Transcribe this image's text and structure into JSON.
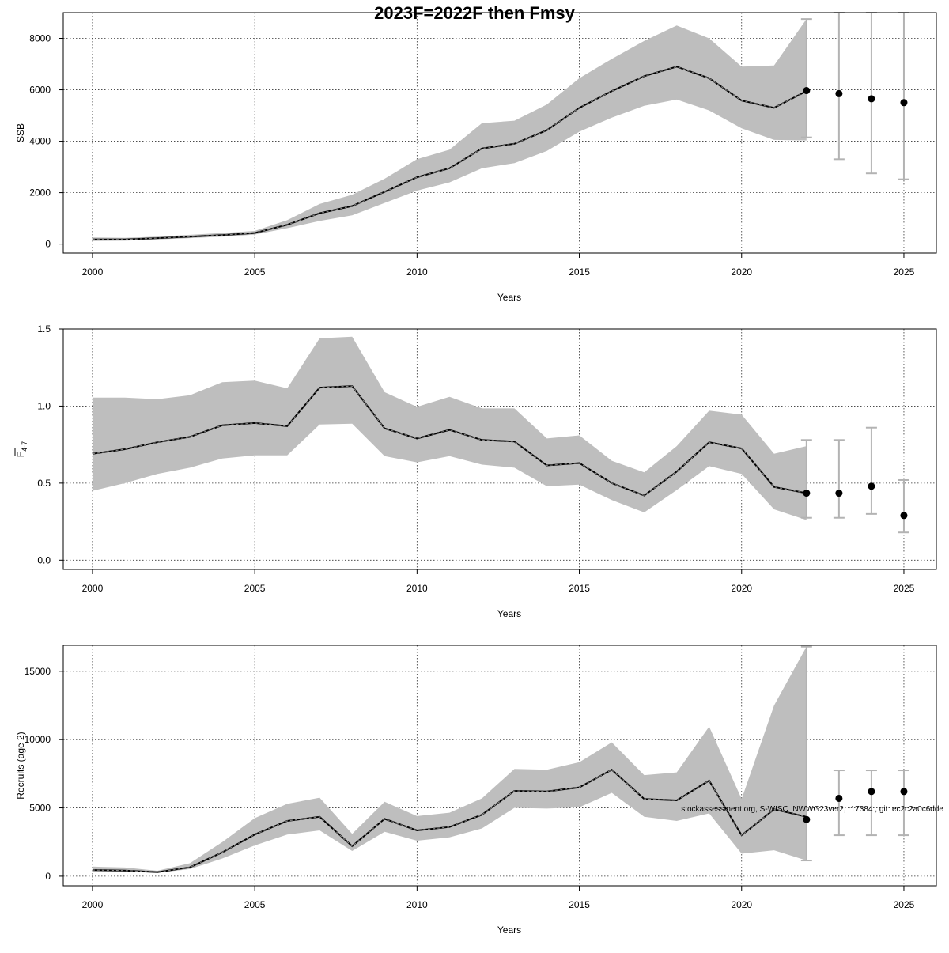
{
  "title": "2023F=2022F then Fmsy",
  "footer_note": "stockassessment.org, S-WISC_NWWG23ver2, r17384 , git: ec2c2a0c6dde",
  "chart_data": [
    {
      "id": "ssb",
      "type": "line",
      "ylabel": "SSB",
      "ylabel_sub": "",
      "xlabel": "Years",
      "xlim": [
        1999.1,
        2026
      ],
      "ylim": [
        -350,
        9000
      ],
      "xticks": [
        2000,
        2005,
        2010,
        2015,
        2020,
        2025
      ],
      "yticks": [
        0,
        2000,
        4000,
        6000,
        8000
      ],
      "ytick_labels": [
        "0",
        "2000",
        "4000",
        "6000",
        "8000"
      ],
      "grid": true,
      "years": [
        2000,
        2001,
        2002,
        2003,
        2004,
        2005,
        2006,
        2007,
        2008,
        2009,
        2010,
        2011,
        2012,
        2013,
        2014,
        2015,
        2016,
        2017,
        2018,
        2019,
        2020,
        2021,
        2022
      ],
      "estimate": [
        180,
        180,
        230,
        290,
        350,
        430,
        750,
        1200,
        1480,
        2030,
        2600,
        2950,
        3720,
        3900,
        4430,
        5300,
        5950,
        6530,
        6900,
        6450,
        5580,
        5300,
        5950
      ],
      "lower": [
        120,
        130,
        180,
        230,
        290,
        370,
        620,
        900,
        1120,
        1600,
        2080,
        2400,
        2950,
        3150,
        3620,
        4370,
        4920,
        5380,
        5620,
        5200,
        4500,
        4050,
        4030
      ],
      "upper": [
        260,
        240,
        290,
        360,
        430,
        510,
        930,
        1560,
        1920,
        2540,
        3300,
        3670,
        4700,
        4800,
        5430,
        6450,
        7200,
        7900,
        8500,
        8000,
        6900,
        6950,
        8750
      ],
      "forecast": [
        {
          "year": 2022,
          "median": 5970,
          "low": 4150,
          "high": 8750
        },
        {
          "year": 2023,
          "median": 5850,
          "low": 3300,
          "high": 9000
        },
        {
          "year": 2024,
          "median": 5650,
          "low": 2750,
          "high": 9000
        },
        {
          "year": 2025,
          "median": 5500,
          "low": 2520,
          "high": 9000
        }
      ]
    },
    {
      "id": "f",
      "type": "line",
      "ylabel": "F",
      "ylabel_sub": "4-7",
      "xlabel": "Years",
      "xlim": [
        1999.1,
        2026
      ],
      "ylim": [
        -0.06,
        1.5
      ],
      "xticks": [
        2000,
        2005,
        2010,
        2015,
        2020,
        2025
      ],
      "yticks": [
        0.0,
        0.5,
        1.0,
        1.5
      ],
      "ytick_labels": [
        "0.0",
        "0.5",
        "1.0",
        "1.5"
      ],
      "grid": true,
      "years": [
        2000,
        2001,
        2002,
        2003,
        2004,
        2005,
        2006,
        2007,
        2008,
        2009,
        2010,
        2011,
        2012,
        2013,
        2014,
        2015,
        2016,
        2017,
        2018,
        2019,
        2020,
        2021,
        2022
      ],
      "estimate": [
        0.69,
        0.72,
        0.765,
        0.8,
        0.875,
        0.89,
        0.87,
        1.12,
        1.13,
        0.855,
        0.79,
        0.845,
        0.78,
        0.77,
        0.615,
        0.63,
        0.5,
        0.42,
        0.575,
        0.765,
        0.725,
        0.475,
        0.435
      ],
      "lower": [
        0.45,
        0.5,
        0.56,
        0.6,
        0.66,
        0.68,
        0.68,
        0.88,
        0.885,
        0.675,
        0.635,
        0.675,
        0.62,
        0.6,
        0.48,
        0.49,
        0.39,
        0.31,
        0.455,
        0.61,
        0.56,
        0.33,
        0.26
      ],
      "upper": [
        1.055,
        1.055,
        1.045,
        1.07,
        1.155,
        1.165,
        1.115,
        1.44,
        1.45,
        1.09,
        0.995,
        1.06,
        0.985,
        0.985,
        0.79,
        0.81,
        0.645,
        0.57,
        0.74,
        0.97,
        0.945,
        0.69,
        0.74
      ],
      "forecast": [
        {
          "year": 2022,
          "median": 0.435,
          "low": 0.275,
          "high": 0.78
        },
        {
          "year": 2023,
          "median": 0.435,
          "low": 0.275,
          "high": 0.78
        },
        {
          "year": 2024,
          "median": 0.48,
          "low": 0.3,
          "high": 0.86
        },
        {
          "year": 2025,
          "median": 0.29,
          "low": 0.18,
          "high": 0.52
        }
      ]
    },
    {
      "id": "rec",
      "type": "line",
      "ylabel": "Recruits (age 2)",
      "ylabel_sub": "",
      "xlabel": "Years",
      "xlim": [
        1999.1,
        2026
      ],
      "ylim": [
        -700,
        16900
      ],
      "xticks": [
        2000,
        2005,
        2010,
        2015,
        2020,
        2025
      ],
      "yticks": [
        0,
        5000,
        10000,
        15000
      ],
      "ytick_labels": [
        "0",
        "5000",
        "10000",
        "15000"
      ],
      "grid": true,
      "years": [
        2000,
        2001,
        2002,
        2003,
        2004,
        2005,
        2006,
        2007,
        2008,
        2009,
        2010,
        2011,
        2012,
        2013,
        2014,
        2015,
        2016,
        2017,
        2018,
        2019,
        2020,
        2021,
        2022
      ],
      "estimate": [
        450,
        420,
        300,
        650,
        1750,
        3050,
        4050,
        4350,
        2200,
        4200,
        3350,
        3600,
        4500,
        6250,
        6200,
        6500,
        7800,
        5650,
        5550,
        7000,
        3000,
        4900,
        4350
      ],
      "lower": [
        350,
        330,
        250,
        520,
        1300,
        2250,
        3050,
        3350,
        1850,
        3250,
        2600,
        2850,
        3500,
        5000,
        4950,
        5050,
        6100,
        4350,
        4050,
        4600,
        1650,
        1900,
        1150
      ],
      "upper": [
        700,
        640,
        400,
        950,
        2500,
        4250,
        5300,
        5750,
        3100,
        5450,
        4400,
        4650,
        5700,
        7850,
        7800,
        8350,
        9800,
        7400,
        7600,
        10950,
        5650,
        12500,
        16800
      ],
      "forecast": [
        {
          "year": 2022,
          "median": 4150,
          "low": 1150,
          "high": 16800
        },
        {
          "year": 2023,
          "median": 5700,
          "low": 3000,
          "high": 7750
        },
        {
          "year": 2024,
          "median": 6200,
          "low": 3000,
          "high": 7750
        },
        {
          "year": 2025,
          "median": 6200,
          "low": 3000,
          "high": 7750
        }
      ]
    }
  ]
}
